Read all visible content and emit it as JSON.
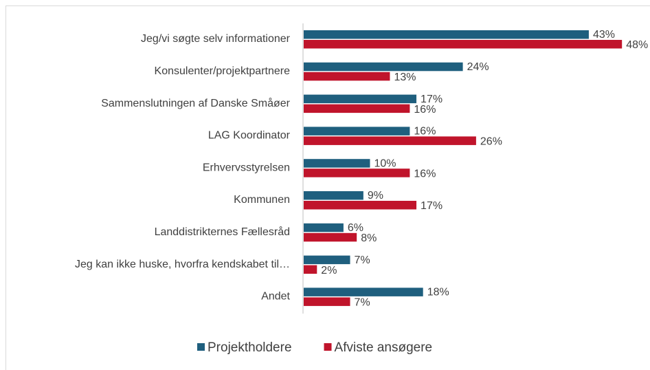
{
  "chart_data": {
    "type": "bar",
    "orientation": "horizontal",
    "categories": [
      "Jeg/vi søgte selv informationer",
      "Konsulenter/projektpartnere",
      "Sammenslutningen af Danske Småøer",
      "LAG Koordinator",
      "Erhvervsstyrelsen",
      "Kommunen",
      "Landdistrikternes Fællesråd",
      "Jeg kan ikke huske, hvorfra kendskabet til…",
      "Andet"
    ],
    "series": [
      {
        "name": "Projektholdere",
        "color": "#1f5f7e",
        "values": [
          43,
          24,
          17,
          16,
          10,
          9,
          6,
          7,
          18
        ],
        "value_labels": [
          "43%",
          "24%",
          "17%",
          "16%",
          "10%",
          "9%",
          "6%",
          "7%",
          "18%"
        ]
      },
      {
        "name": "Afviste ansøgere",
        "color": "#c0142b",
        "values": [
          48,
          13,
          16,
          26,
          16,
          17,
          8,
          2,
          7
        ],
        "value_labels": [
          "48%",
          "13%",
          "16%",
          "26%",
          "16%",
          "17%",
          "8%",
          "2%",
          "7%"
        ]
      }
    ],
    "legend": "bottom"
  }
}
